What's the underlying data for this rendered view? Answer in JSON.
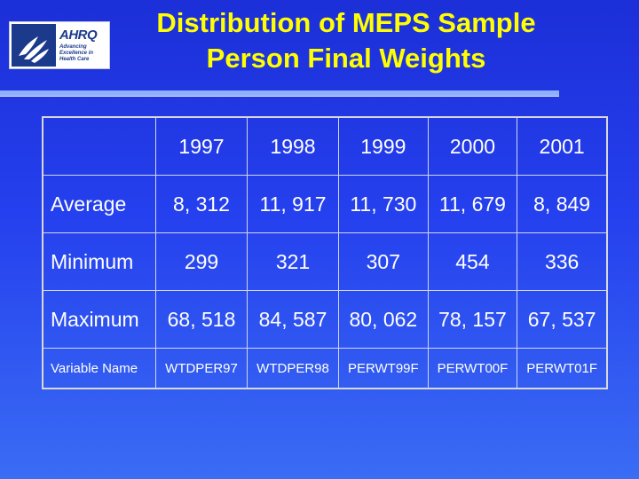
{
  "logo": {
    "brand": "AHRQ",
    "tagline": [
      "Advancing",
      "Excellence in",
      "Health Care"
    ]
  },
  "title_lines": [
    "Distribution of MEPS Sample",
    "Person Final Weights"
  ],
  "table": {
    "years": [
      "1997",
      "1998",
      "1999",
      "2000",
      "2001"
    ],
    "rows": [
      {
        "label": "Average",
        "values": [
          "8, 312",
          "11, 917",
          "11, 730",
          "11, 679",
          "8, 849"
        ]
      },
      {
        "label": "Minimum",
        "values": [
          "299",
          "321",
          "307",
          "454",
          "336"
        ]
      },
      {
        "label": "Maximum",
        "values": [
          "68, 518",
          "84, 587",
          "80, 062",
          "78, 157",
          "67, 537"
        ]
      },
      {
        "label": "Variable Name",
        "values": [
          "WTDPER97",
          "WTDPER98",
          "PERWT99F",
          "PERWT00F",
          "PERWT01F"
        ]
      }
    ]
  },
  "colors": {
    "background": "#2540ee",
    "title": "#ffff00",
    "text": "#ffffff",
    "rule": "#8fb0ff"
  }
}
